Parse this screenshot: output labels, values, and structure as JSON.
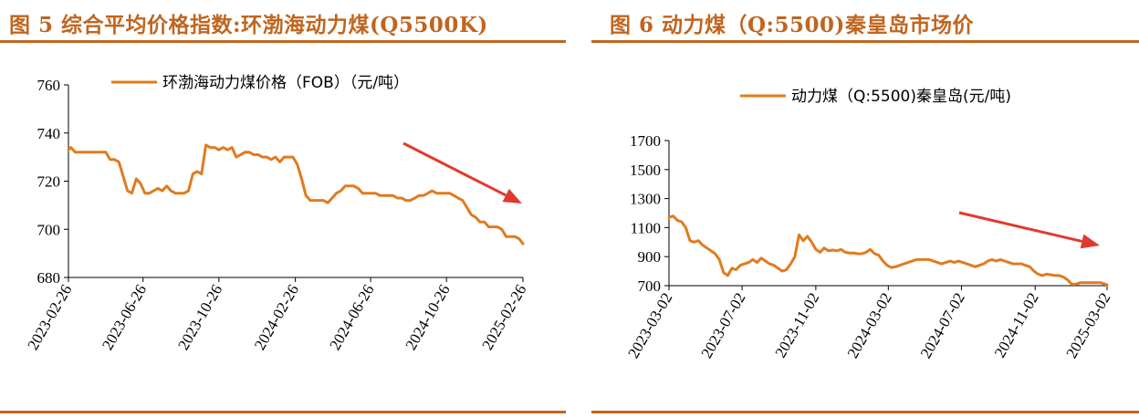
{
  "figures": [
    {
      "title": "图 5  综合平均价格指数:环渤海动力煤(Q5500K)",
      "colors": {
        "title": "#c0651f",
        "rule": "#c0651f",
        "series": "#e07b1f",
        "arrow": "#e03a2f"
      },
      "chart_data": {
        "type": "line",
        "title": "",
        "xlabel": "",
        "ylabel": "",
        "ylim": [
          680,
          760
        ],
        "yticks": [
          680,
          700,
          720,
          740,
          760
        ],
        "xticks": [
          "2023-02-26",
          "2023-06-26",
          "2023-10-26",
          "2024-02-26",
          "2024-06-26",
          "2024-10-26",
          "2025-02-26"
        ],
        "xlim": [
          "2023-02-26",
          "2025-02-26"
        ],
        "legend_position": "top",
        "annotation": "red arrow pointing down-right (downtrend)",
        "series": [
          {
            "name": "环渤海动力煤价格（FOB）（元/吨）",
            "x": [
              "2023-02-26",
              "2023-03-02",
              "2023-03-09",
              "2023-03-16",
              "2023-03-23",
              "2023-03-30",
              "2023-04-06",
              "2023-04-13",
              "2023-04-20",
              "2023-04-27",
              "2023-05-04",
              "2023-05-11",
              "2023-05-18",
              "2023-05-25",
              "2023-06-01",
              "2023-06-08",
              "2023-06-15",
              "2023-06-22",
              "2023-06-29",
              "2023-07-06",
              "2023-07-13",
              "2023-07-20",
              "2023-07-27",
              "2023-08-03",
              "2023-08-10",
              "2023-08-17",
              "2023-08-24",
              "2023-08-31",
              "2023-09-07",
              "2023-09-14",
              "2023-09-21",
              "2023-09-28",
              "2023-10-05",
              "2023-10-12",
              "2023-10-19",
              "2023-10-26",
              "2023-11-02",
              "2023-11-09",
              "2023-11-16",
              "2023-11-23",
              "2023-11-30",
              "2023-12-07",
              "2023-12-14",
              "2023-12-21",
              "2023-12-28",
              "2024-01-04",
              "2024-01-11",
              "2024-01-18",
              "2024-01-25",
              "2024-02-01",
              "2024-02-08",
              "2024-02-15",
              "2024-02-22",
              "2024-02-29",
              "2024-03-07",
              "2024-03-14",
              "2024-03-21",
              "2024-03-28",
              "2024-04-04",
              "2024-04-11",
              "2024-04-18",
              "2024-04-25",
              "2024-05-02",
              "2024-05-09",
              "2024-05-16",
              "2024-05-23",
              "2024-05-30",
              "2024-06-06",
              "2024-06-13",
              "2024-06-20",
              "2024-06-27",
              "2024-07-04",
              "2024-07-11",
              "2024-07-18",
              "2024-07-25",
              "2024-08-01",
              "2024-08-08",
              "2024-08-15",
              "2024-08-22",
              "2024-08-29",
              "2024-09-05",
              "2024-09-12",
              "2024-09-19",
              "2024-09-26",
              "2024-10-03",
              "2024-10-10",
              "2024-10-17",
              "2024-10-24",
              "2024-10-31",
              "2024-11-07",
              "2024-11-14",
              "2024-11-21",
              "2024-11-28",
              "2024-12-05",
              "2024-12-12",
              "2024-12-19",
              "2024-12-26",
              "2025-01-02",
              "2025-01-09",
              "2025-01-16",
              "2025-01-23",
              "2025-01-30",
              "2025-02-06",
              "2025-02-13",
              "2025-02-20",
              "2025-02-26"
            ],
            "values": [
              733,
              734,
              732,
              732,
              732,
              732,
              732,
              732,
              732,
              732,
              729,
              729,
              728,
              722,
              716,
              715,
              721,
              719,
              715,
              715,
              716,
              717,
              716,
              718,
              716,
              715,
              715,
              715,
              716,
              723,
              724,
              723,
              735,
              734,
              734,
              733,
              734,
              733,
              734,
              730,
              731,
              732,
              732,
              731,
              731,
              730,
              730,
              729,
              730,
              728,
              730,
              730,
              730,
              727,
              721,
              714,
              712,
              712,
              712,
              712,
              711,
              713,
              715,
              716,
              718,
              718,
              718,
              717,
              715,
              715,
              715,
              715,
              714,
              714,
              714,
              714,
              713,
              713,
              712,
              712,
              713,
              714,
              714,
              715,
              716,
              715,
              715,
              715,
              715,
              714,
              713,
              712,
              709,
              706,
              705,
              703,
              703,
              701,
              701,
              701,
              700,
              697,
              697,
              697,
              696,
              694
            ]
          }
        ]
      }
    },
    {
      "title": "图 6 动力煤（Q:5500)秦皇岛市场价",
      "colors": {
        "title": "#c0651f",
        "rule": "#c0651f",
        "series": "#e07b1f",
        "arrow": "#e03a2f"
      },
      "chart_data": {
        "type": "line",
        "title": "",
        "xlabel": "",
        "ylabel": "",
        "ylim": [
          700,
          1700
        ],
        "yticks": [
          700,
          900,
          1100,
          1300,
          1500,
          1700
        ],
        "xticks": [
          "2023-03-02",
          "2023-07-02",
          "2023-11-02",
          "2024-03-02",
          "2024-07-02",
          "2024-11-02",
          "2025-03-02"
        ],
        "xlim": [
          "2023-03-02",
          "2025-03-02"
        ],
        "legend_position": "top",
        "annotation": "red arrow pointing down-right (downtrend)",
        "series": [
          {
            "name": "动力煤（Q:5500)秦皇岛(元/吨)",
            "x": [
              "2023-03-02",
              "2023-03-09",
              "2023-03-16",
              "2023-03-23",
              "2023-03-30",
              "2023-04-06",
              "2023-04-13",
              "2023-04-20",
              "2023-04-27",
              "2023-05-04",
              "2023-05-11",
              "2023-05-18",
              "2023-05-25",
              "2023-06-01",
              "2023-06-08",
              "2023-06-15",
              "2023-06-22",
              "2023-06-29",
              "2023-07-06",
              "2023-07-13",
              "2023-07-20",
              "2023-07-27",
              "2023-08-03",
              "2023-08-10",
              "2023-08-17",
              "2023-08-24",
              "2023-08-31",
              "2023-09-07",
              "2023-09-14",
              "2023-09-21",
              "2023-09-28",
              "2023-10-05",
              "2023-10-12",
              "2023-10-19",
              "2023-10-26",
              "2023-11-02",
              "2023-11-09",
              "2023-11-16",
              "2023-11-23",
              "2023-11-30",
              "2023-12-07",
              "2023-12-14",
              "2023-12-21",
              "2023-12-28",
              "2024-01-04",
              "2024-01-11",
              "2024-01-18",
              "2024-01-25",
              "2024-02-01",
              "2024-02-08",
              "2024-02-15",
              "2024-02-22",
              "2024-02-29",
              "2024-03-07",
              "2024-03-14",
              "2024-03-21",
              "2024-03-28",
              "2024-04-04",
              "2024-04-11",
              "2024-04-18",
              "2024-04-25",
              "2024-05-02",
              "2024-05-09",
              "2024-05-16",
              "2024-05-23",
              "2024-05-30",
              "2024-06-06",
              "2024-06-13",
              "2024-06-20",
              "2024-06-27",
              "2024-07-04",
              "2024-07-11",
              "2024-07-18",
              "2024-07-25",
              "2024-08-01",
              "2024-08-08",
              "2024-08-15",
              "2024-08-22",
              "2024-08-29",
              "2024-09-05",
              "2024-09-12",
              "2024-09-19",
              "2024-09-26",
              "2024-10-03",
              "2024-10-10",
              "2024-10-17",
              "2024-10-24",
              "2024-10-31",
              "2024-11-07",
              "2024-11-14",
              "2024-11-21",
              "2024-11-28",
              "2024-12-05",
              "2024-12-12",
              "2024-12-19",
              "2024-12-26",
              "2025-01-02",
              "2025-01-09",
              "2025-01-16",
              "2025-01-23",
              "2025-01-30",
              "2025-02-06",
              "2025-02-13",
              "2025-02-20",
              "2025-02-27",
              "2025-03-02"
            ],
            "values": [
              1170,
              1180,
              1150,
              1140,
              1100,
              1010,
              1000,
              1010,
              980,
              960,
              940,
              920,
              880,
              790,
              770,
              820,
              810,
              840,
              850,
              860,
              880,
              860,
              890,
              870,
              850,
              840,
              820,
              800,
              810,
              850,
              900,
              1050,
              1010,
              1040,
              1000,
              950,
              930,
              960,
              940,
              945,
              940,
              950,
              930,
              925,
              925,
              920,
              920,
              930,
              950,
              920,
              910,
              870,
              840,
              825,
              830,
              840,
              850,
              860,
              870,
              880,
              880,
              880,
              880,
              870,
              860,
              850,
              860,
              870,
              860,
              870,
              860,
              850,
              840,
              830,
              840,
              850,
              870,
              880,
              870,
              880,
              870,
              860,
              850,
              850,
              850,
              840,
              830,
              800,
              780,
              770,
              780,
              775,
              770,
              770,
              760,
              740,
              710,
              710,
              720,
              720,
              720,
              720,
              720,
              720,
              710,
              705
            ]
          }
        ]
      }
    }
  ]
}
